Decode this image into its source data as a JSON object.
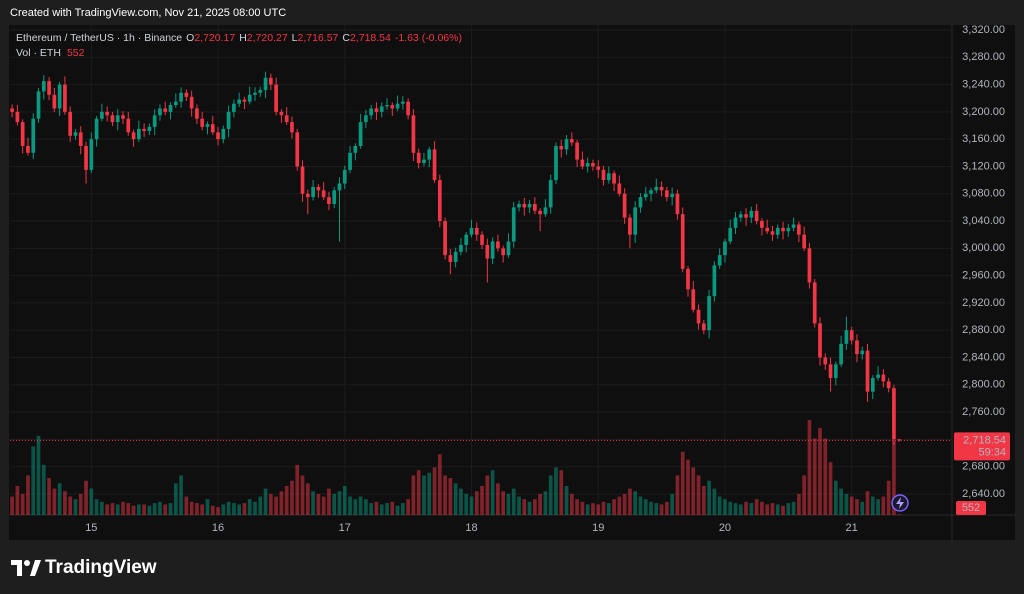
{
  "chart_data": {
    "type": "candlestick",
    "source_note": "Created with TradingView.com, Nov 21, 2025 08:00 UTC",
    "legend": {
      "symbol": "Ethereum / TetherUS · 1h · Binance",
      "fields": [
        [
          "O",
          "2,720.17"
        ],
        [
          "H",
          "2,720.27"
        ],
        [
          "L",
          "2,716.57"
        ],
        [
          "C",
          "2,718.54"
        ]
      ],
      "change": "-1.63 (-0.06%)",
      "volume_label": "Vol · ETH"
    },
    "brand": "TradingView",
    "up_color": "#089981",
    "down_color": "#f23645",
    "grid": true,
    "ylim": [
      2609.2,
      3327.3
    ],
    "yticks": [
      {
        "value": 2640,
        "label": "2,640.00"
      },
      {
        "value": 2680,
        "label": "2,680.00"
      },
      {
        "value": 2720,
        "label": "2,720.00"
      },
      {
        "value": 2760,
        "label": "2,760.00"
      },
      {
        "value": 2800,
        "label": "2,800.00"
      },
      {
        "value": 2840,
        "label": "2,840.00"
      },
      {
        "value": 2880,
        "label": "2,880.00"
      },
      {
        "value": 2920,
        "label": "2,920.00"
      },
      {
        "value": 2960,
        "label": "2,960.00"
      },
      {
        "value": 3000,
        "label": "3,000.00"
      },
      {
        "value": 3040,
        "label": "3,040.00"
      },
      {
        "value": 3080,
        "label": "3,080.00"
      },
      {
        "value": 3120,
        "label": "3,120.00"
      },
      {
        "value": 3160,
        "label": "3,160.00"
      },
      {
        "value": 3200,
        "label": "3,200.00"
      },
      {
        "value": 3240,
        "label": "3,240.00"
      },
      {
        "value": 3280,
        "label": "3,280.00"
      },
      {
        "value": 3320,
        "label": "3,320.00"
      }
    ],
    "xlim": [
      -0.4,
      178
    ],
    "xticks": [
      15,
      {
        "value": 39,
        "label": "16"
      },
      {
        "value": 63,
        "label": "17"
      },
      {
        "value": 87,
        "label": "18"
      },
      {
        "value": 111,
        "label": "19"
      },
      {
        "value": 135,
        "label": "20"
      },
      {
        "value": 159,
        "label": "21"
      }
    ],
    "last_price": {
      "value": 2718.54,
      "label": "2,718.54"
    },
    "countdown": "59:34",
    "open": [
      3205,
      3200,
      3185,
      3150,
      3140,
      3190,
      3230,
      3245,
      3225,
      3205,
      3240,
      3200,
      3165,
      3170,
      3150,
      3115,
      3160,
      3190,
      3200,
      3195,
      3185,
      3195,
      3190,
      3170,
      3160,
      3175,
      3172,
      3178,
      3195,
      3205,
      3200,
      3210,
      3215,
      3228,
      3222,
      3205,
      3190,
      3178,
      3182,
      3170,
      3160,
      3175,
      3200,
      3212,
      3218,
      3215,
      3225,
      3228,
      3232,
      3250,
      3240,
      3200,
      3195,
      3185,
      3170,
      3120,
      3080,
      3075,
      3090,
      3085,
      3075,
      3065,
      3085,
      3095,
      3115,
      3140,
      3150,
      3185,
      3195,
      3205,
      3200,
      3208,
      3210,
      3205,
      3212,
      3215,
      3195,
      3140,
      3125,
      3130,
      3145,
      3100,
      3040,
      2990,
      2980,
      2995,
      3005,
      3020,
      3030,
      3020,
      3005,
      2985,
      3010,
      3000,
      2990,
      3010,
      3060,
      3065,
      3060,
      3065,
      3055,
      3050,
      3060,
      3100,
      3150,
      3145,
      3160,
      3155,
      3130,
      3120,
      3125,
      3120,
      3115,
      3100,
      3110,
      3095,
      3080,
      3045,
      3020,
      3060,
      3075,
      3080,
      3085,
      3090,
      3085,
      3075,
      3080,
      3050,
      2970,
      2940,
      2910,
      2890,
      2880,
      2930,
      2975,
      2990,
      3010,
      3030,
      3045,
      3050,
      3045,
      3055,
      3040,
      3030,
      3025,
      3020,
      3030,
      3025,
      3030,
      3035,
      3020,
      3000,
      2950,
      2890,
      2840,
      2830,
      2810,
      2830,
      2860,
      2880,
      2865,
      2845,
      2850,
      2790,
      2810,
      2815,
      2805,
      2795,
      2720.17
    ],
    "high": [
      3211,
      3210,
      3189,
      3162,
      3198,
      3235,
      3254,
      3251,
      3235,
      3244,
      3252,
      3208,
      3175,
      3179,
      3156,
      3170,
      3194,
      3212,
      3208,
      3200,
      3204,
      3201,
      3200,
      3174,
      3187,
      3183,
      3183,
      3204,
      3211,
      3215,
      3214,
      3227,
      3236,
      3233,
      3231,
      3211,
      3200,
      3186,
      3194,
      3178,
      3180,
      3209,
      3218,
      3228,
      3222,
      3237,
      3236,
      3237,
      3259,
      3256,
      3250,
      3204,
      3207,
      3193,
      3175,
      3129,
      3086,
      3100,
      3094,
      3097,
      3083,
      3090,
      3104,
      3121,
      3150,
      3154,
      3197,
      3203,
      3210,
      3214,
      3214,
      3220,
      3214,
      3224,
      3223,
      3220,
      3204,
      3146,
      3140,
      3149,
      3157,
      3108,
      3045,
      2999,
      3001,
      3015,
      3024,
      3042,
      3038,
      3025,
      3014,
      3016,
      3020,
      3004,
      3022,
      3068,
      3070,
      3074,
      3071,
      3075,
      3059,
      3072,
      3108,
      3155,
      3159,
      3166,
      3170,
      3159,
      3142,
      3133,
      3130,
      3129,
      3121,
      3120,
      3114,
      3107,
      3088,
      3050,
      3069,
      3081,
      3090,
      3089,
      3102,
      3098,
      3090,
      3089,
      3086,
      3060,
      2974,
      2952,
      2918,
      2895,
      2939,
      2981,
      3000,
      3014,
      3042,
      3053,
      3055,
      3059,
      3061,
      3065,
      3044,
      3042,
      3033,
      3035,
      3039,
      3036,
      3045,
      3039,
      3032,
      3008,
      2955,
      2899,
      2846,
      2840,
      2834,
      2872,
      2900,
      2885,
      2874,
      2856,
      2860,
      2814,
      2827,
      2823,
      2810,
      2800,
      2720.27
    ],
    "low": [
      3192,
      3180,
      3139,
      3136,
      3131,
      3184,
      3218,
      3217,
      3200,
      3194,
      3196,
      3156,
      3159,
      3138,
      3095,
      3110,
      3149,
      3186,
      3186,
      3179,
      3173,
      3182,
      3165,
      3149,
      3156,
      3163,
      3166,
      3166,
      3187,
      3195,
      3189,
      3206,
      3206,
      3216,
      3193,
      3182,
      3173,
      3167,
      3166,
      3151,
      3154,
      3163,
      3192,
      3207,
      3204,
      3211,
      3216,
      3222,
      3220,
      3232,
      3195,
      3184,
      3181,
      3161,
      3114,
      3068,
      3050,
      3070,
      3074,
      3071,
      3056,
      3059,
      3010,
      3087,
      3110,
      3129,
      3146,
      3176,
      3189,
      3188,
      3192,
      3203,
      3194,
      3201,
      3203,
      3189,
      3128,
      3117,
      3120,
      3119,
      3096,
      3031,
      2984,
      2962,
      2972,
      2990,
      2994,
      3016,
      3011,
      2999,
      2950,
      2977,
      2995,
      2979,
      2986,
      3001,
      3054,
      3048,
      3052,
      3050,
      3025,
      3046,
      3051,
      3094,
      3133,
      3137,
      3150,
      3119,
      3116,
      3111,
      3114,
      3103,
      3092,
      3095,
      3084,
      3076,
      3036,
      3000,
      3008,
      3052,
      3070,
      3069,
      3081,
      3076,
      3069,
      3063,
      3042,
      2965,
      2929,
      2906,
      2881,
      2874,
      2868,
      2922,
      2970,
      2979,
      3006,
      3021,
      3039,
      3033,
      3037,
      3035,
      3019,
      3021,
      3011,
      3014,
      3013,
      3017,
      3025,
      3009,
      2996,
      2941,
      2884,
      2828,
      2822,
      2790,
      2799,
      2826,
      2851,
      2859,
      2833,
      2837,
      2775,
      2779,
      2806,
      2796,
      2789,
      2712,
      2716.57
    ],
    "close": [
      3200,
      3185,
      3150,
      3140,
      3190,
      3230,
      3245,
      3225,
      3205,
      3240,
      3200,
      3165,
      3170,
      3150,
      3115,
      3160,
      3190,
      3200,
      3195,
      3185,
      3195,
      3190,
      3170,
      3160,
      3175,
      3172,
      3178,
      3195,
      3205,
      3200,
      3210,
      3215,
      3228,
      3222,
      3205,
      3190,
      3178,
      3182,
      3170,
      3160,
      3175,
      3200,
      3212,
      3218,
      3215,
      3225,
      3228,
      3232,
      3250,
      3240,
      3200,
      3195,
      3185,
      3170,
      3120,
      3080,
      3075,
      3090,
      3085,
      3075,
      3065,
      3085,
      3095,
      3115,
      3140,
      3150,
      3185,
      3195,
      3205,
      3200,
      3208,
      3210,
      3205,
      3212,
      3215,
      3195,
      3140,
      3125,
      3130,
      3145,
      3100,
      3040,
      2990,
      2980,
      2995,
      3005,
      3020,
      3030,
      3020,
      3005,
      2985,
      3010,
      3000,
      2990,
      3010,
      3060,
      3065,
      3060,
      3065,
      3055,
      3050,
      3060,
      3100,
      3150,
      3145,
      3160,
      3155,
      3130,
      3120,
      3125,
      3120,
      3115,
      3100,
      3110,
      3095,
      3080,
      3045,
      3020,
      3060,
      3075,
      3080,
      3085,
      3090,
      3085,
      3075,
      3080,
      3050,
      2970,
      2940,
      2910,
      2890,
      2880,
      2930,
      2975,
      2990,
      3010,
      3030,
      3045,
      3050,
      3045,
      3055,
      3040,
      3030,
      3025,
      3020,
      3030,
      3025,
      3030,
      3035,
      3020,
      3000,
      2950,
      2890,
      2840,
      2830,
      2810,
      2830,
      2860,
      2880,
      2865,
      2845,
      2850,
      2790,
      2810,
      2815,
      2805,
      2795,
      2720.17,
      2718.54
    ],
    "volume": [
      14000,
      22000,
      16000,
      30000,
      52000,
      60000,
      38000,
      28000,
      20000,
      24000,
      18000,
      14000,
      12000,
      16000,
      26000,
      20000,
      12000,
      10000,
      8000,
      9000,
      8000,
      10000,
      9000,
      7000,
      8000,
      8000,
      7000,
      9000,
      10000,
      8000,
      9000,
      24000,
      30000,
      14000,
      10000,
      9000,
      8000,
      12000,
      7000,
      6000,
      8000,
      10000,
      9000,
      8000,
      9000,
      12000,
      10000,
      14000,
      20000,
      16000,
      14000,
      18000,
      22000,
      26000,
      38000,
      30000,
      24000,
      18000,
      16000,
      14000,
      20000,
      16000,
      18000,
      22000,
      14000,
      12000,
      14000,
      12000,
      9000,
      10000,
      8000,
      9000,
      10000,
      7000,
      9000,
      12000,
      30000,
      34000,
      30000,
      32000,
      36000,
      46000,
      30000,
      28000,
      24000,
      20000,
      16000,
      14000,
      18000,
      22000,
      30000,
      34000,
      24000,
      18000,
      16000,
      20000,
      14000,
      12000,
      10000,
      12000,
      16000,
      18000,
      30000,
      36000,
      34000,
      22000,
      16000,
      12000,
      10000,
      8000,
      9000,
      8000,
      10000,
      9000,
      12000,
      14000,
      16000,
      20000,
      18000,
      14000,
      12000,
      10000,
      9000,
      8000,
      10000,
      16000,
      30000,
      48000,
      42000,
      36000,
      30000,
      22000,
      26000,
      20000,
      14000,
      12000,
      10000,
      9000,
      8000,
      10000,
      9000,
      12000,
      10000,
      8000,
      9000,
      8000,
      7000,
      9000,
      10000,
      16000,
      30000,
      72000,
      58000,
      66000,
      58000,
      40000,
      26000,
      20000,
      16000,
      14000,
      12000,
      10000,
      18000,
      14000,
      12000,
      14000,
      26000,
      56000,
      552
    ]
  }
}
